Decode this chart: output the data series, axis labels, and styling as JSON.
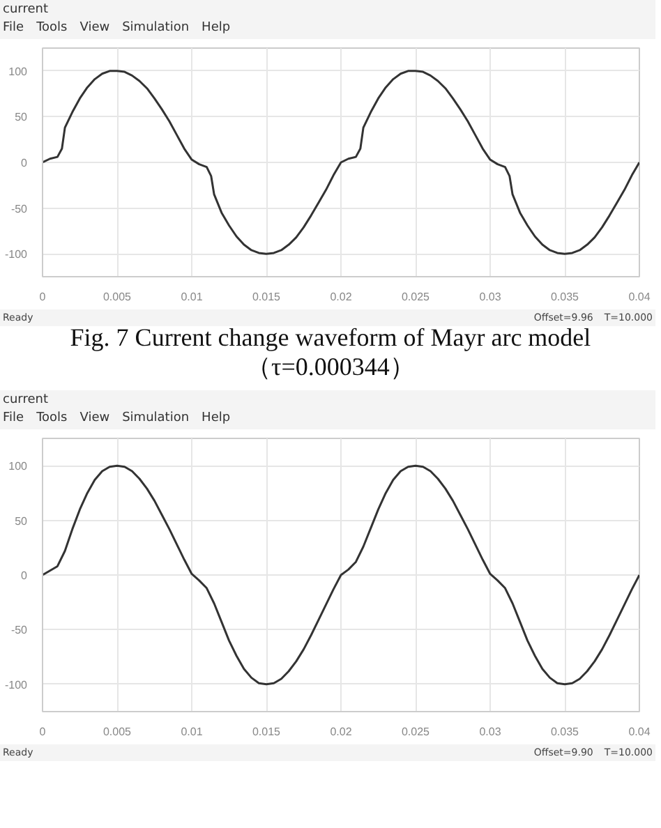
{
  "chart_data": [
    {
      "type": "line",
      "title": "current",
      "annotations": [
        "File",
        "Tools",
        "View",
        "Simulation",
        "Help",
        "Ready",
        "Offset=9.96",
        "T=10.000",
        "Fig. 7 Current change waveform of Mayr arc model",
        "（τ=0.000344）"
      ],
      "x": [
        0,
        0.0005,
        0.001,
        0.0013,
        0.0015,
        0.002,
        0.0025,
        0.003,
        0.0035,
        0.004,
        0.0045,
        0.005,
        0.0055,
        0.006,
        0.0065,
        0.007,
        0.0075,
        0.008,
        0.0085,
        0.009,
        0.0095,
        0.01,
        0.0105,
        0.011,
        0.0113,
        0.0115,
        0.012,
        0.0125,
        0.013,
        0.0135,
        0.014,
        0.0145,
        0.015,
        0.0155,
        0.016,
        0.0165,
        0.017,
        0.0175,
        0.018,
        0.0185,
        0.019,
        0.0195,
        0.02,
        0.0205,
        0.021,
        0.0213,
        0.0215,
        0.022,
        0.0225,
        0.023,
        0.0235,
        0.024,
        0.0245,
        0.025,
        0.0255,
        0.026,
        0.0265,
        0.027,
        0.0275,
        0.028,
        0.0285,
        0.029,
        0.0295,
        0.03,
        0.0305,
        0.031,
        0.0313,
        0.0315,
        0.032,
        0.0325,
        0.033,
        0.0335,
        0.034,
        0.0345,
        0.035,
        0.0355,
        0.036,
        0.0365,
        0.037,
        0.0375,
        0.038,
        0.0385,
        0.039,
        0.0395,
        0.04
      ],
      "series": [
        {
          "color": "#333333",
          "values": [
            0,
            4,
            6,
            15,
            38,
            55,
            70,
            82,
            91,
            97,
            100,
            100,
            99,
            95,
            89,
            81,
            70,
            58,
            45,
            30,
            15,
            3,
            -2,
            -5,
            -15,
            -35,
            -55,
            -69,
            -81,
            -90,
            -96,
            -99,
            -100,
            -99,
            -96,
            -90,
            -82,
            -71,
            -58,
            -44,
            -30,
            -14,
            0,
            4,
            6,
            15,
            38,
            55,
            70,
            82,
            91,
            97,
            100,
            100,
            99,
            95,
            89,
            81,
            70,
            58,
            45,
            30,
            15,
            3,
            -2,
            -5,
            -15,
            -35,
            -55,
            -69,
            -81,
            -90,
            -96,
            -99,
            -100,
            -99,
            -96,
            -90,
            -82,
            -71,
            -58,
            -44,
            -30,
            -14,
            0
          ]
        }
      ],
      "xlim": [
        0,
        0.04
      ],
      "ylim": [
        -125,
        125
      ],
      "xticks": [
        0,
        0.005,
        0.01,
        0.015,
        0.02,
        0.025,
        0.03,
        0.035,
        0.04
      ],
      "yticks": [
        -100,
        -50,
        0,
        50,
        100
      ],
      "grid": true
    },
    {
      "type": "line",
      "title": "current",
      "annotations": [
        "File",
        "Tools",
        "View",
        "Simulation",
        "Help",
        "Ready",
        "Offset=9.90",
        "T=10.000"
      ],
      "x": [
        0,
        0.0005,
        0.001,
        0.0015,
        0.002,
        0.0025,
        0.003,
        0.0035,
        0.004,
        0.0045,
        0.005,
        0.0055,
        0.006,
        0.0065,
        0.007,
        0.0075,
        0.008,
        0.0085,
        0.009,
        0.0095,
        0.01,
        0.0105,
        0.011,
        0.0115,
        0.012,
        0.0125,
        0.013,
        0.0135,
        0.014,
        0.0145,
        0.015,
        0.0155,
        0.016,
        0.0165,
        0.017,
        0.0175,
        0.018,
        0.0185,
        0.019,
        0.0195,
        0.02,
        0.0205,
        0.021,
        0.0215,
        0.022,
        0.0225,
        0.023,
        0.0235,
        0.024,
        0.0245,
        0.025,
        0.0255,
        0.026,
        0.0265,
        0.027,
        0.0275,
        0.028,
        0.0285,
        0.029,
        0.0295,
        0.03,
        0.0305,
        0.031,
        0.0315,
        0.032,
        0.0325,
        0.033,
        0.0335,
        0.034,
        0.0345,
        0.035,
        0.0355,
        0.036,
        0.0365,
        0.037,
        0.0375,
        0.038,
        0.0385,
        0.039,
        0.0395,
        0.04
      ],
      "series": [
        {
          "color": "#333333",
          "values": [
            0,
            4,
            8,
            22,
            42,
            60,
            75,
            87,
            95,
            99,
            100,
            99,
            95,
            88,
            79,
            68,
            55,
            42,
            28,
            14,
            1,
            -5,
            -12,
            -26,
            -43,
            -60,
            -74,
            -86,
            -94,
            -99,
            -100,
            -99,
            -95,
            -88,
            -79,
            -68,
            -55,
            -41,
            -27,
            -13,
            0,
            5,
            12,
            26,
            43,
            60,
            75,
            87,
            95,
            99,
            100,
            99,
            95,
            88,
            79,
            68,
            55,
            42,
            28,
            14,
            1,
            -5,
            -12,
            -26,
            -43,
            -60,
            -74,
            -86,
            -94,
            -99,
            -100,
            -99,
            -95,
            -88,
            -79,
            -68,
            -55,
            -41,
            -27,
            -13,
            0
          ]
        }
      ],
      "xlim": [
        0,
        0.04
      ],
      "ylim": [
        -125,
        125
      ],
      "xticks": [
        0,
        0.005,
        0.01,
        0.015,
        0.02,
        0.025,
        0.03,
        0.035,
        0.04
      ],
      "yticks": [
        -100,
        -50,
        0,
        50,
        100
      ],
      "grid": true
    }
  ]
}
